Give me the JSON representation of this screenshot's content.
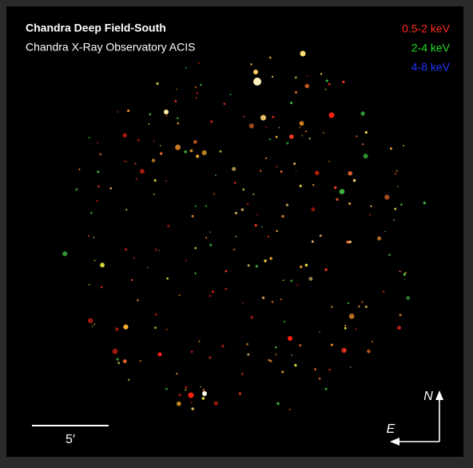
{
  "header": {
    "title": "Chandra Deep Field-South",
    "subtitle": "Chandra X-Ray Observatory ACIS"
  },
  "legend": [
    {
      "label": "0.5-2 keV",
      "color": "#ff2a1a"
    },
    {
      "label": "2-4 keV",
      "color": "#22dd22"
    },
    {
      "label": "4-8 keV",
      "color": "#2233ff"
    }
  ],
  "scale_bar": {
    "label": "5′"
  },
  "compass": {
    "north": "N",
    "east": "E"
  }
}
